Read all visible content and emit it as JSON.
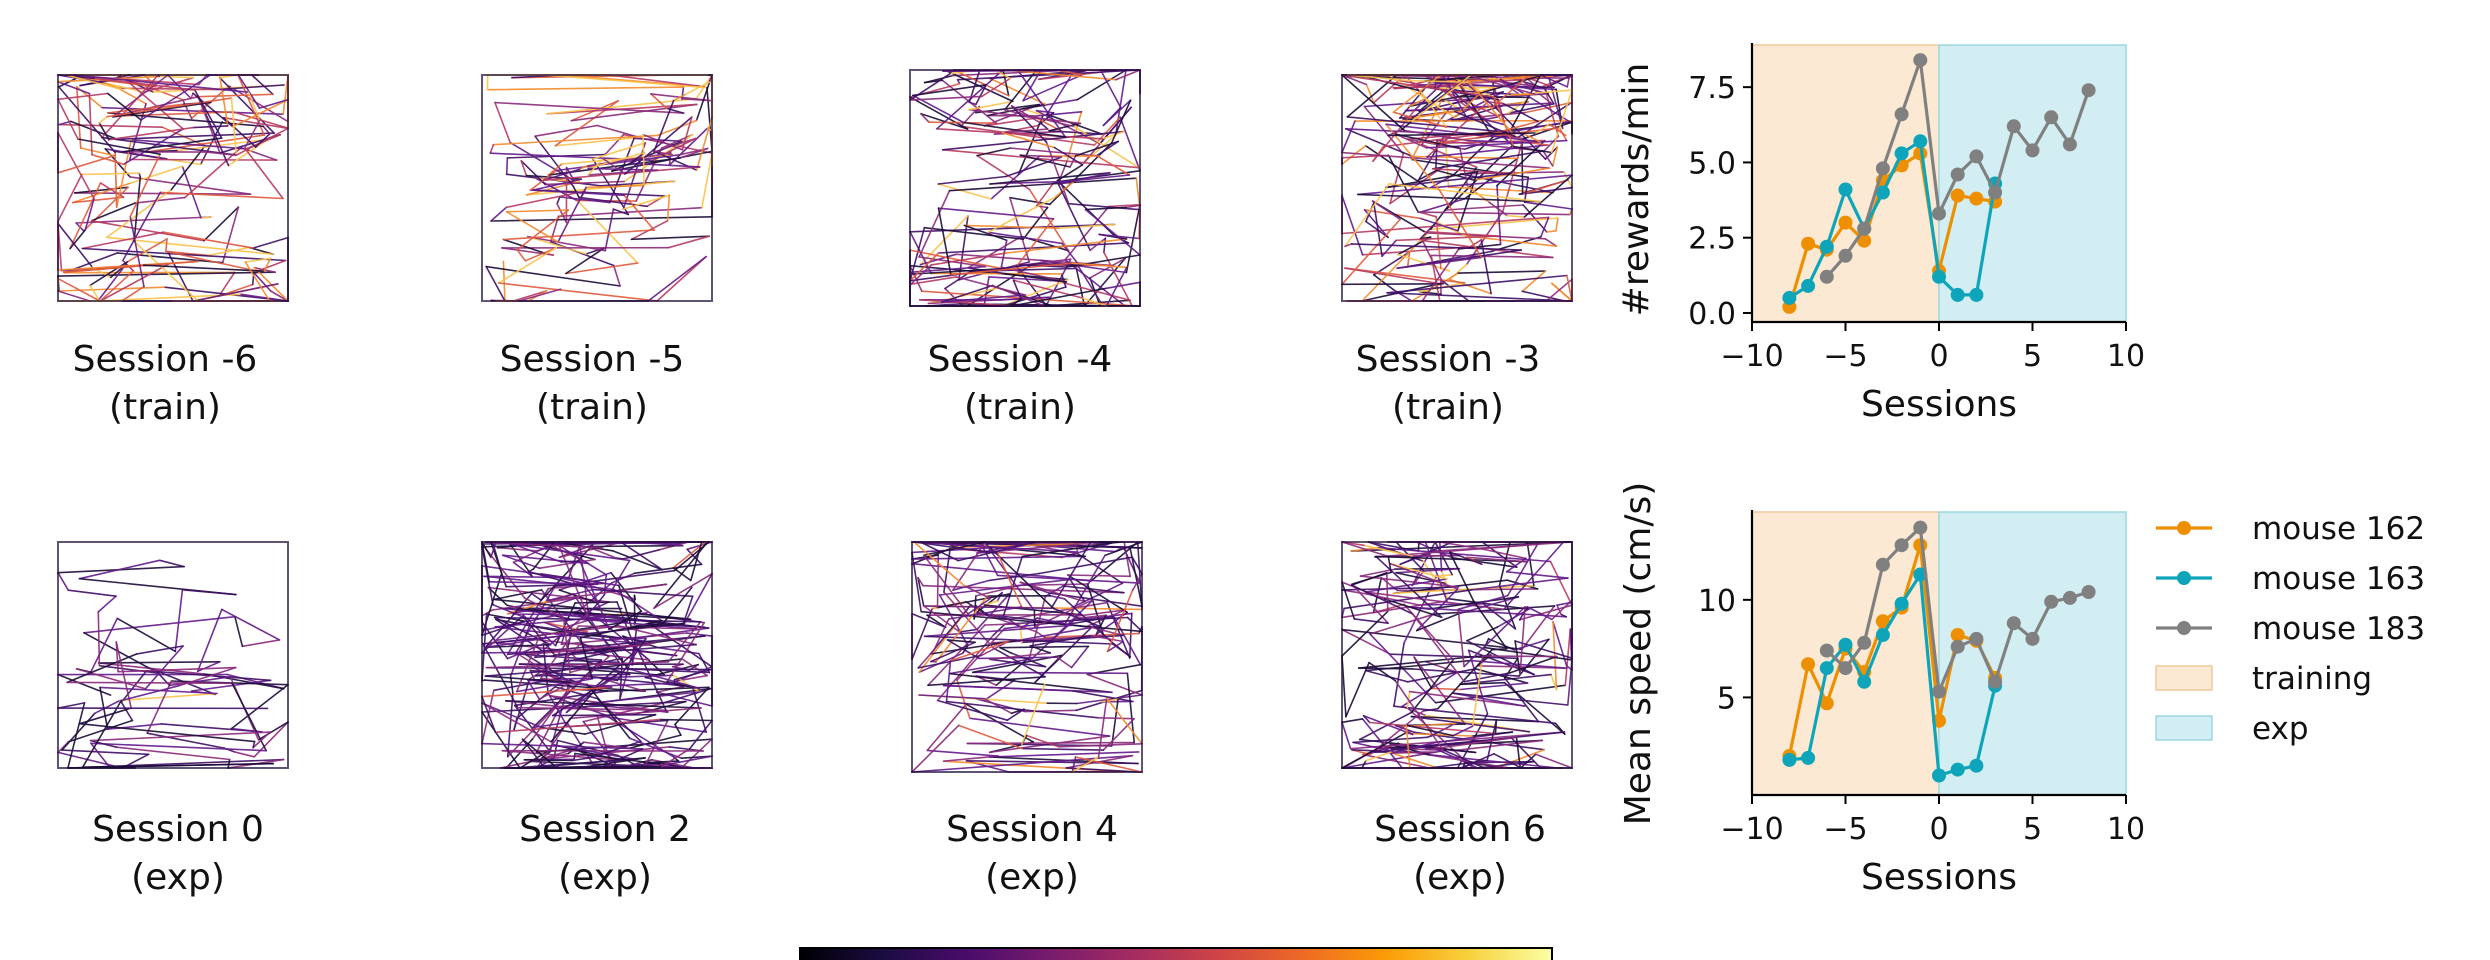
{
  "colors": {
    "mouse162": "#ee8f00",
    "mouse163": "#0ea5bb",
    "mouse183": "#808080",
    "training_span": "#fbe9d3",
    "exp_span": "#d3eef2",
    "trajectory_palette": [
      "#1c0b39",
      "#3e0e66",
      "#64198b",
      "#8b2a7c",
      "#b63a62",
      "#df5a3d",
      "#f38a2a",
      "#f9c24a"
    ]
  },
  "colorbar": {
    "gradient": [
      "#000004",
      "#1b0c41",
      "#4a0c6b",
      "#781c6d",
      "#a52c60",
      "#cf4446",
      "#ed6925",
      "#fb9b06",
      "#f7d13d",
      "#fcffa4"
    ]
  },
  "trajectory_panels": [
    {
      "label": "Session -6\n(train)",
      "density": 220,
      "bright": 0.45
    },
    {
      "label": "Session -5\n(train)",
      "density": 160,
      "bright": 0.4
    },
    {
      "label": "Session -4\n(train)",
      "density": 260,
      "bright": 0.25
    },
    {
      "label": "Session -3\n(train)",
      "density": 320,
      "bright": 0.4
    },
    {
      "label": "Session 0\n(exp)",
      "density": 90,
      "bright": 0.02
    },
    {
      "label": "Session 2\n(exp)",
      "density": 420,
      "bright": 0.03
    },
    {
      "label": "Session 4\n(exp)",
      "density": 260,
      "bright": 0.1
    },
    {
      "label": "Session 6\n(exp)",
      "density": 280,
      "bright": 0.12
    }
  ],
  "chart_data": [
    {
      "type": "line",
      "xlabel": "Sessions",
      "ylabel": "#rewards/min",
      "xlim": [
        -10,
        10
      ],
      "ylim": [
        -0.3,
        8.9
      ],
      "xticks": [
        -10,
        -5,
        0,
        5,
        10
      ],
      "xtick_labels": [
        "−10",
        "−5",
        "0",
        "5",
        "10"
      ],
      "yticks": [
        0,
        2.5,
        5,
        7.5
      ],
      "ytick_labels": [
        "0.0",
        "2.5",
        "5.0",
        "7.5"
      ],
      "spans": [
        {
          "name": "training",
          "from": -10,
          "to": 0
        },
        {
          "name": "exp",
          "from": 0,
          "to": 10
        }
      ],
      "series": [
        {
          "name": "mouse 162",
          "color_key": "mouse162",
          "points": [
            [
              -8,
              0.2
            ],
            [
              -7,
              2.3
            ],
            [
              -6,
              2.1
            ],
            [
              -5,
              3.0
            ],
            [
              -4,
              2.4
            ],
            [
              -3,
              4.4
            ],
            [
              -2,
              4.9
            ],
            [
              -1,
              5.3
            ],
            [
              0,
              1.4
            ],
            [
              1,
              3.9
            ],
            [
              2,
              3.8
            ],
            [
              3,
              3.7
            ]
          ]
        },
        {
          "name": "mouse 163",
          "color_key": "mouse163",
          "points": [
            [
              -8,
              0.5
            ],
            [
              -7,
              0.9
            ],
            [
              -6,
              2.2
            ],
            [
              -5,
              4.1
            ],
            [
              -4,
              2.8
            ],
            [
              -3,
              4.0
            ],
            [
              -2,
              5.3
            ],
            [
              -1,
              5.7
            ],
            [
              0,
              1.2
            ],
            [
              1,
              0.6
            ],
            [
              2,
              0.6
            ],
            [
              3,
              4.3
            ]
          ]
        },
        {
          "name": "mouse 183",
          "color_key": "mouse183",
          "points": [
            [
              -6,
              1.2
            ],
            [
              -5,
              1.9
            ],
            [
              -4,
              2.8
            ],
            [
              -3,
              4.8
            ],
            [
              -2,
              6.6
            ],
            [
              -1,
              8.4
            ],
            [
              0,
              3.3
            ],
            [
              1,
              4.6
            ],
            [
              2,
              5.2
            ],
            [
              3,
              4.0
            ],
            [
              4,
              6.2
            ],
            [
              5,
              5.4
            ],
            [
              6,
              6.5
            ],
            [
              7,
              5.6
            ],
            [
              8,
              7.4
            ]
          ]
        }
      ]
    },
    {
      "type": "line",
      "xlabel": "Sessions",
      "ylabel": "Mean speed (cm/s)",
      "xlim": [
        -10,
        10
      ],
      "ylim": [
        0,
        14.5
      ],
      "xticks": [
        -10,
        -5,
        0,
        5,
        10
      ],
      "xtick_labels": [
        "−10",
        "−5",
        "0",
        "5",
        "10"
      ],
      "yticks": [
        5,
        10
      ],
      "ytick_labels": [
        "5",
        "10"
      ],
      "spans": [
        {
          "name": "training",
          "from": -10,
          "to": 0
        },
        {
          "name": "exp",
          "from": 0,
          "to": 10
        }
      ],
      "series": [
        {
          "name": "mouse 162",
          "color_key": "mouse162",
          "points": [
            [
              -8,
              2.0
            ],
            [
              -7,
              6.7
            ],
            [
              -6,
              4.7
            ],
            [
              -5,
              7.5
            ],
            [
              -4,
              6.3
            ],
            [
              -3,
              8.9
            ],
            [
              -2,
              9.6
            ],
            [
              -1,
              12.8
            ],
            [
              0,
              3.8
            ],
            [
              1,
              8.2
            ],
            [
              2,
              7.9
            ],
            [
              3,
              6.0
            ]
          ]
        },
        {
          "name": "mouse 163",
          "color_key": "mouse163",
          "points": [
            [
              -8,
              1.8
            ],
            [
              -7,
              1.9
            ],
            [
              -6,
              6.5
            ],
            [
              -5,
              7.7
            ],
            [
              -4,
              5.8
            ],
            [
              -3,
              8.2
            ],
            [
              -2,
              9.8
            ],
            [
              -1,
              11.3
            ],
            [
              0,
              1.0
            ],
            [
              1,
              1.3
            ],
            [
              2,
              1.5
            ],
            [
              3,
              5.6
            ]
          ]
        },
        {
          "name": "mouse 183",
          "color_key": "mouse183",
          "points": [
            [
              -6,
              7.4
            ],
            [
              -5,
              6.5
            ],
            [
              -4,
              7.8
            ],
            [
              -3,
              11.8
            ],
            [
              -2,
              12.8
            ],
            [
              -1,
              13.7
            ],
            [
              0,
              5.3
            ],
            [
              1,
              7.6
            ],
            [
              2,
              8.0
            ],
            [
              3,
              5.8
            ],
            [
              4,
              8.8
            ],
            [
              5,
              8.0
            ],
            [
              6,
              9.9
            ],
            [
              7,
              10.1
            ],
            [
              8,
              10.4
            ]
          ]
        }
      ]
    }
  ],
  "legend": {
    "placement": "right of lower chart",
    "entries": [
      {
        "label": "mouse 162",
        "kind": "line",
        "color_key": "mouse162"
      },
      {
        "label": "mouse 163",
        "kind": "line",
        "color_key": "mouse163"
      },
      {
        "label": "mouse 183",
        "kind": "line",
        "color_key": "mouse183"
      },
      {
        "label": "training",
        "kind": "patch",
        "color_key": "training_span"
      },
      {
        "label": "exp",
        "kind": "patch",
        "color_key": "exp_span"
      }
    ]
  }
}
